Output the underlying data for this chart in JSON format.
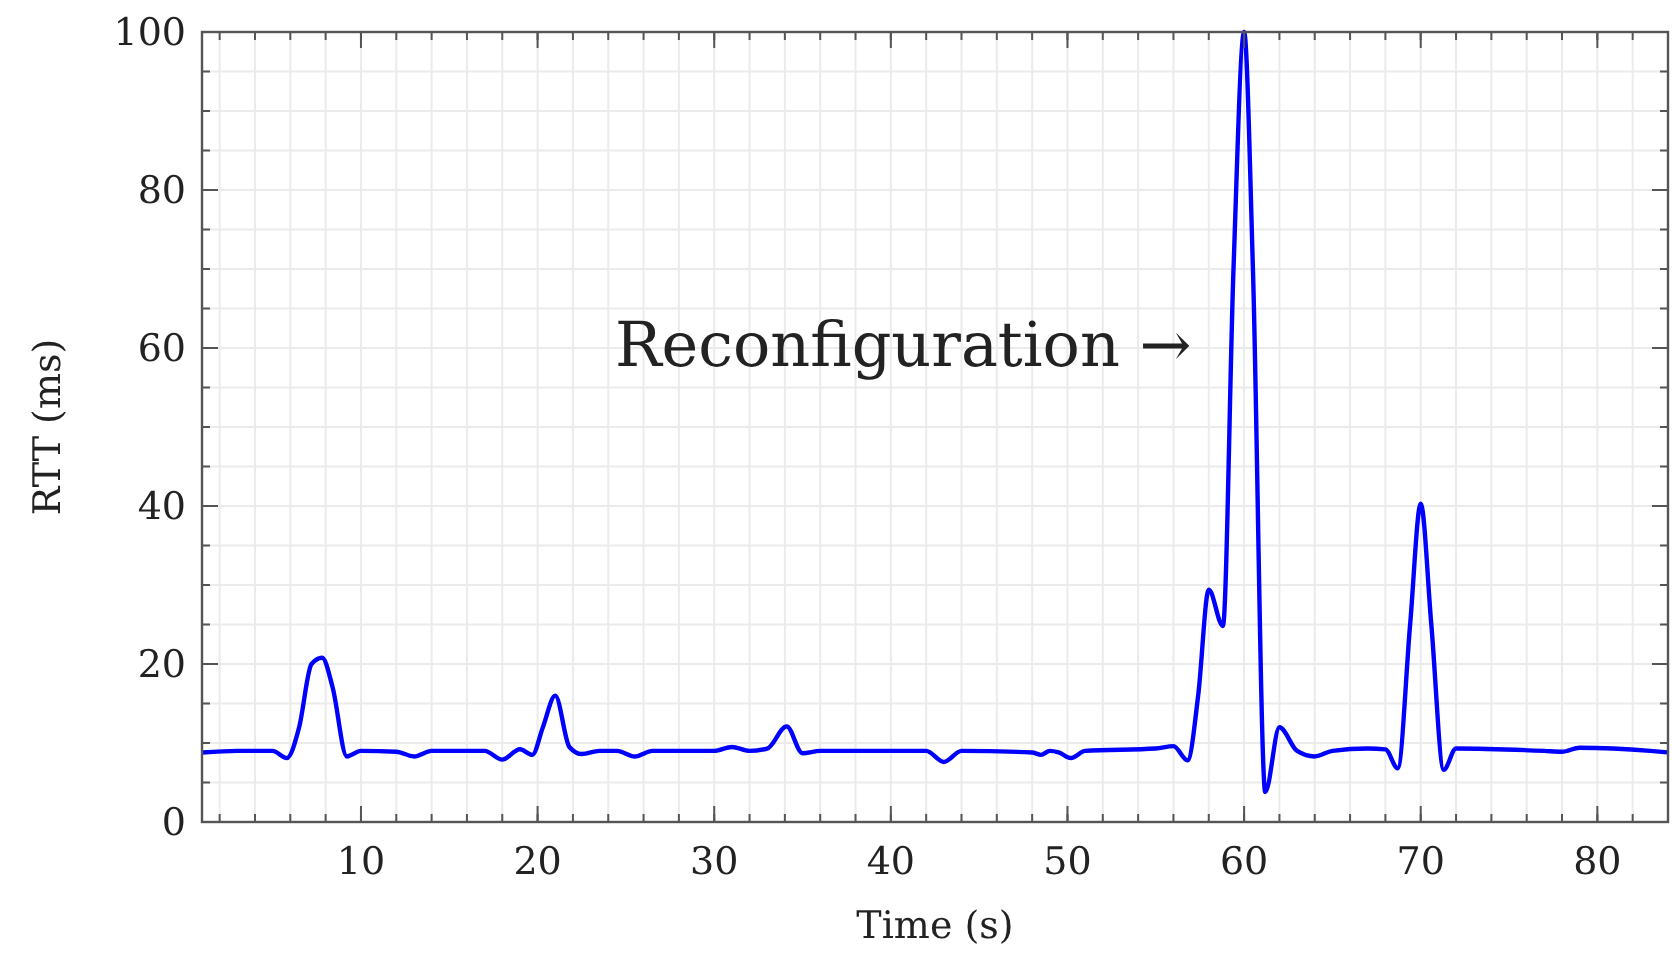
{
  "chart_data": {
    "type": "line",
    "xlabel": "Time (s)",
    "ylabel": "RTT (ms)",
    "xlim": [
      1,
      84
    ],
    "xticks": [
      10,
      20,
      30,
      40,
      50,
      60,
      70,
      80
    ],
    "ylim": [
      0,
      100
    ],
    "yticks": [
      0,
      20,
      40,
      60,
      80,
      100
    ],
    "grid": true,
    "marker": "none",
    "line_style": "solid",
    "annotations": [
      "Reconfiguration →"
    ],
    "series": [
      {
        "color": "#0000ff",
        "x": [
          1,
          3,
          5,
          5.8,
          6.5,
          7.2,
          7.8,
          8.4,
          9.2,
          10,
          12,
          13,
          14,
          17,
          18,
          19,
          19.7,
          20.3,
          21,
          21.8,
          22.5,
          23.5,
          24.5,
          25.5,
          26.5,
          30,
          31,
          32,
          33,
          34.1,
          35,
          36,
          42,
          43,
          44,
          48,
          48.5,
          49,
          49.5,
          50.2,
          51,
          55,
          56,
          56.8,
          57.4,
          58,
          58.8,
          59.4,
          60,
          60.5,
          61.2,
          62,
          63,
          64,
          65,
          67,
          68,
          68.7,
          69.4,
          70,
          70.6,
          71.3,
          72,
          77,
          78,
          79,
          83,
          84
        ],
        "values": [
          8.8,
          9,
          9,
          8.1,
          12,
          20,
          20.8,
          17,
          8.3,
          9,
          8.9,
          8.3,
          9,
          9,
          7.9,
          9.2,
          8.5,
          12,
          16,
          9.5,
          8.6,
          9,
          9,
          8.3,
          9,
          9,
          9.5,
          9,
          9.3,
          12.1,
          8.7,
          9,
          9,
          7.6,
          9,
          8.8,
          8.5,
          9,
          8.8,
          8.1,
          9,
          9.3,
          9.6,
          7.8,
          16,
          29.4,
          24.8,
          70,
          100,
          70,
          3.8,
          12,
          9,
          8.3,
          9,
          9.3,
          9.2,
          6.8,
          25,
          40.3,
          25,
          6.6,
          9.3,
          9,
          8.9,
          9.4,
          9,
          8.8
        ]
      }
    ]
  }
}
